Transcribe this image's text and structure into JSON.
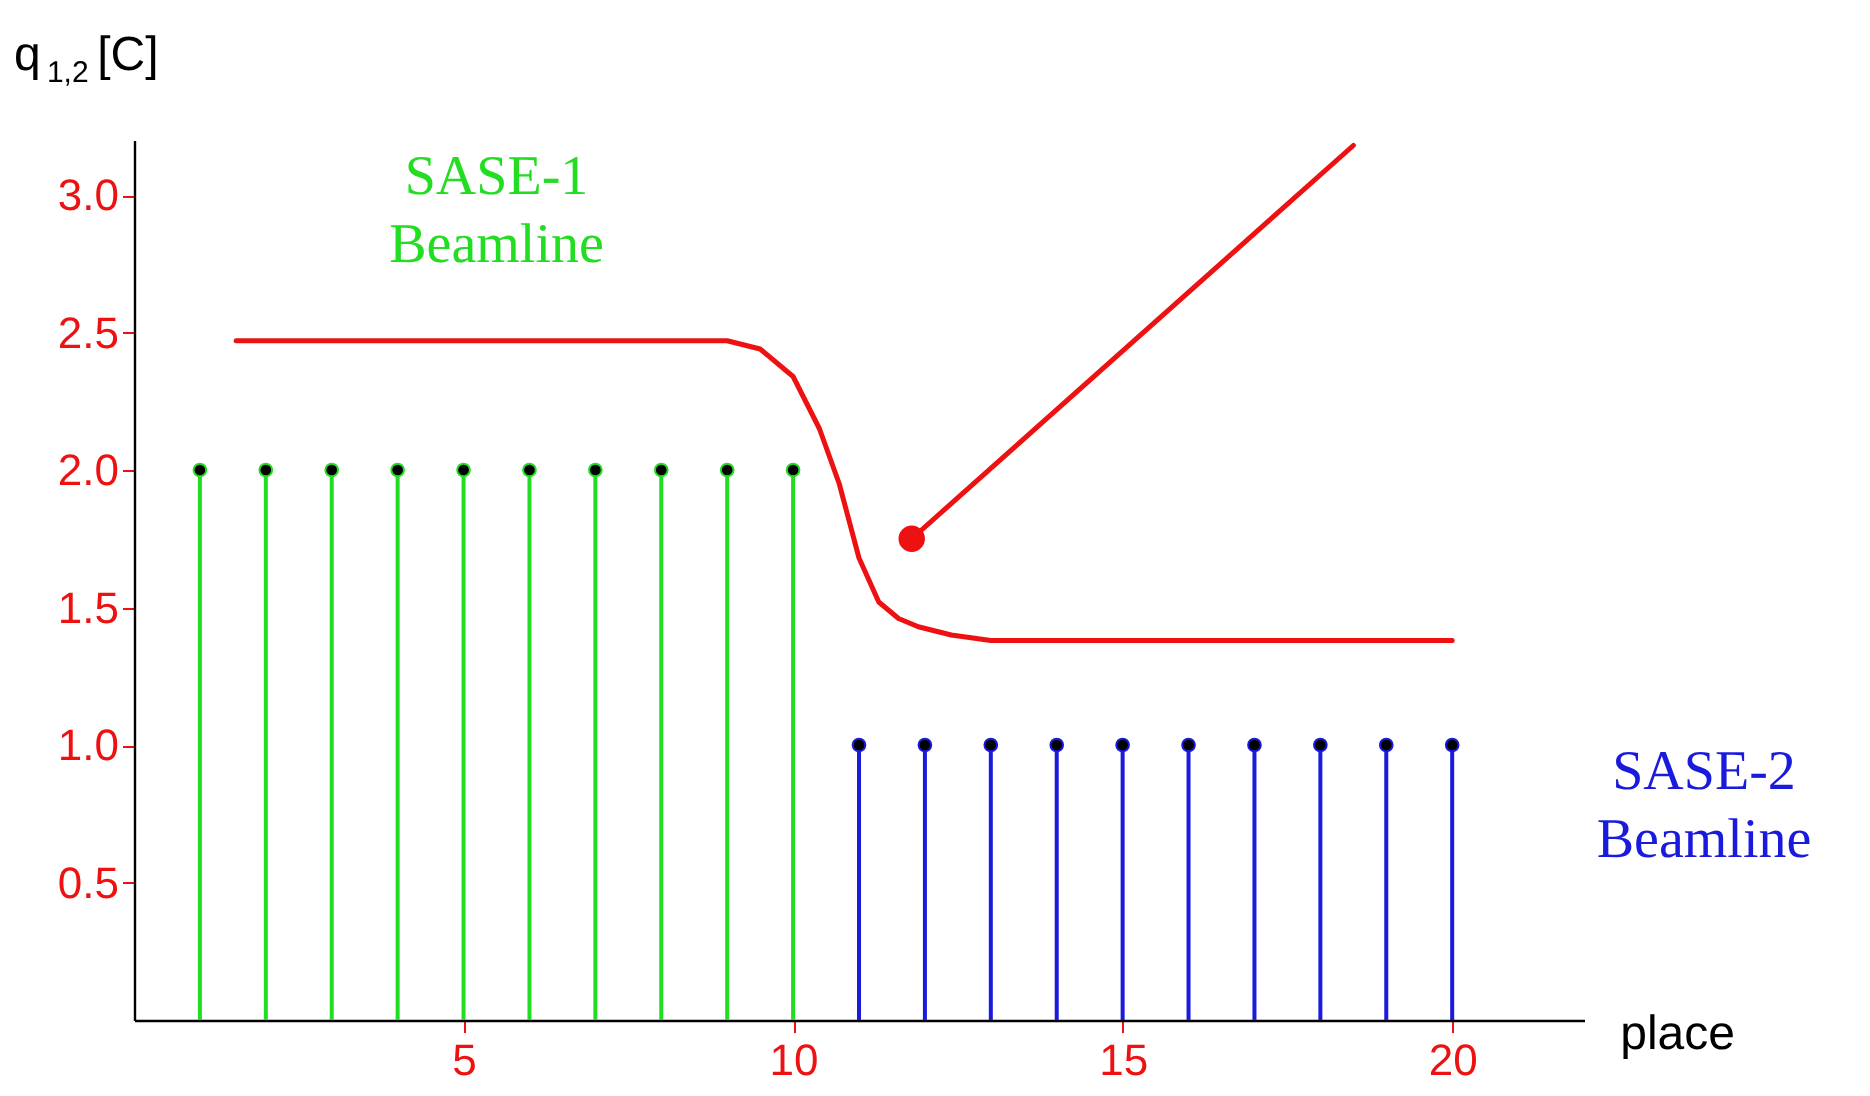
{
  "chart_data": {
    "type": "lollipop",
    "ylabel": "q$_{1,2}$ [C]",
    "xlabel": "place",
    "xlim": [
      0,
      22
    ],
    "xticks": [
      5,
      10,
      15,
      20
    ],
    "ylim": [
      0,
      3.2
    ],
    "yticks": [
      0.5,
      {
        "value": 1,
        "label": "1.0"
      },
      1.5,
      {
        "value": 2,
        "label": "2.0"
      },
      2.5,
      {
        "value": 3,
        "label": "3.0"
      }
    ],
    "grid": false,
    "marker": "circle",
    "line_style": "solid",
    "series": [
      {
        "name": "SASE-1 Beamline",
        "color": "#22dd22",
        "x": [
          1,
          2,
          3,
          4,
          5,
          6,
          7,
          8,
          9,
          10
        ],
        "values": [
          2,
          2,
          2,
          2,
          2,
          2,
          2,
          2,
          2,
          2
        ]
      },
      {
        "name": "SASE-2 Beamline",
        "color": "#1a1add",
        "x": [
          11,
          12,
          13,
          14,
          15,
          16,
          17,
          18,
          19,
          20
        ],
        "values": [
          1,
          1,
          1,
          1,
          1,
          1,
          1,
          1,
          1,
          1
        ]
      },
      {
        "type": "line",
        "color": "#ee1111",
        "marker": "none",
        "x": [
          1.55,
          3,
          5,
          7,
          9,
          9.5,
          10,
          10.4,
          10.7,
          11,
          11.3,
          11.6,
          11.9,
          12.4,
          13,
          14,
          17,
          20
        ],
        "values": [
          2.47,
          2.47,
          2.47,
          2.47,
          2.47,
          2.44,
          2.34,
          2.15,
          1.95,
          1.68,
          1.52,
          1.46,
          1.43,
          1.4,
          1.38,
          1.38,
          1.38,
          1.38
        ]
      },
      {
        "type": "line",
        "color": "#ee1111",
        "marker": "none",
        "x": [
          11.8,
          18.5
        ],
        "values": [
          1.75,
          3.18
        ]
      },
      {
        "type": "scatter",
        "color": "#ee1111",
        "x": [
          11.8
        ],
        "values": [
          1.75
        ]
      }
    ]
  }
}
